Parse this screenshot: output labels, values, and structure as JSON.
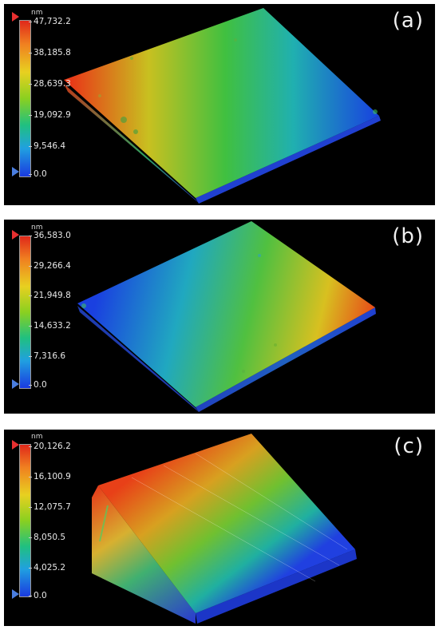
{
  "unit": "nm",
  "panels": [
    {
      "label": "(a)",
      "ticks": [
        "47,732.2",
        "38,185.8",
        "28,639.3",
        "19,092.9",
        "9,546.4",
        "0.0"
      ]
    },
    {
      "label": "(b)",
      "ticks": [
        "36,583.0",
        "29,266.4",
        "21,949.8",
        "14,633.2",
        "7,316.6",
        "0.0"
      ]
    },
    {
      "label": "(c)",
      "ticks": [
        "20,126.2",
        "16,100.9",
        "12,075.7",
        "8,050.5",
        "4,025.2",
        "0.0"
      ]
    }
  ],
  "colors": {
    "background": "#000000",
    "scale_top": "#e0281a",
    "scale_bottom": "#1a3ae0",
    "arrow_top": "#e83030",
    "arrow_bottom": "#4a7ee0"
  }
}
